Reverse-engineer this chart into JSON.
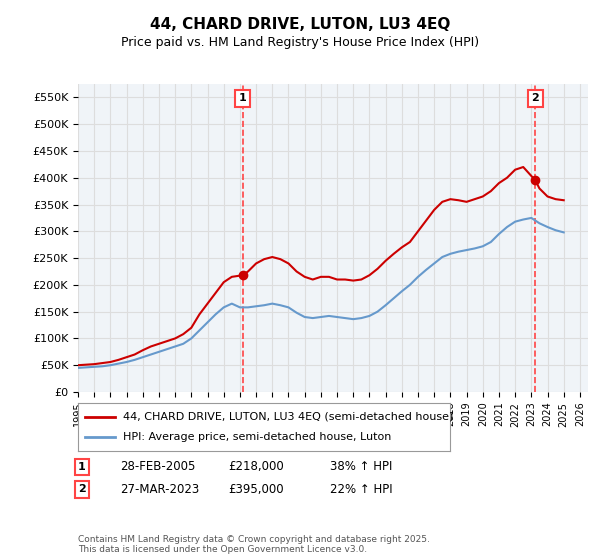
{
  "title": "44, CHARD DRIVE, LUTON, LU3 4EQ",
  "subtitle": "Price paid vs. HM Land Registry's House Price Index (HPI)",
  "footer": "Contains HM Land Registry data © Crown copyright and database right 2025.\nThis data is licensed under the Open Government Licence v3.0.",
  "legend_line1": "44, CHARD DRIVE, LUTON, LU3 4EQ (semi-detached house)",
  "legend_line2": "HPI: Average price, semi-detached house, Luton",
  "annotation1_label": "1",
  "annotation1_date": "28-FEB-2005",
  "annotation1_price": "£218,000",
  "annotation1_hpi": "38% ↑ HPI",
  "annotation2_label": "2",
  "annotation2_date": "27-MAR-2023",
  "annotation2_price": "£395,000",
  "annotation2_hpi": "22% ↑ HPI",
  "red_color": "#cc0000",
  "blue_color": "#6699cc",
  "background_color": "#ffffff",
  "grid_color": "#dddddd",
  "dashed_line_color": "#ff4444",
  "ylim": [
    0,
    575000
  ],
  "yticks": [
    0,
    50000,
    100000,
    150000,
    200000,
    250000,
    300000,
    350000,
    400000,
    450000,
    500000,
    550000
  ],
  "xlim_start": 1995.0,
  "xlim_end": 2026.5,
  "marker1_x": 2005.17,
  "marker1_y": 218000,
  "marker2_x": 2023.25,
  "marker2_y": 395000,
  "vline1_x": 2005.17,
  "vline2_x": 2023.25,
  "red_series_x": [
    1995.0,
    1995.5,
    1996.0,
    1996.5,
    1997.0,
    1997.5,
    1998.0,
    1998.5,
    1999.0,
    1999.5,
    2000.0,
    2000.5,
    2001.0,
    2001.5,
    2002.0,
    2002.5,
    2003.0,
    2003.5,
    2004.0,
    2004.5,
    2005.17,
    2005.5,
    2006.0,
    2006.5,
    2007.0,
    2007.5,
    2008.0,
    2008.5,
    2009.0,
    2009.5,
    2010.0,
    2010.5,
    2011.0,
    2011.5,
    2012.0,
    2012.5,
    2013.0,
    2013.5,
    2014.0,
    2014.5,
    2015.0,
    2015.5,
    2016.0,
    2016.5,
    2017.0,
    2017.5,
    2018.0,
    2018.5,
    2019.0,
    2019.5,
    2020.0,
    2020.5,
    2021.0,
    2021.5,
    2022.0,
    2022.5,
    2023.25,
    2023.5,
    2024.0,
    2024.5,
    2025.0
  ],
  "red_series_y": [
    50000,
    51000,
    52000,
    54000,
    56000,
    60000,
    65000,
    70000,
    78000,
    85000,
    90000,
    95000,
    100000,
    108000,
    120000,
    145000,
    165000,
    185000,
    205000,
    215000,
    218000,
    225000,
    240000,
    248000,
    252000,
    248000,
    240000,
    225000,
    215000,
    210000,
    215000,
    215000,
    210000,
    210000,
    208000,
    210000,
    218000,
    230000,
    245000,
    258000,
    270000,
    280000,
    300000,
    320000,
    340000,
    355000,
    360000,
    358000,
    355000,
    360000,
    365000,
    375000,
    390000,
    400000,
    415000,
    420000,
    395000,
    380000,
    365000,
    360000,
    358000
  ],
  "blue_series_x": [
    1995.0,
    1995.5,
    1996.0,
    1996.5,
    1997.0,
    1997.5,
    1998.0,
    1998.5,
    1999.0,
    1999.5,
    2000.0,
    2000.5,
    2001.0,
    2001.5,
    2002.0,
    2002.5,
    2003.0,
    2003.5,
    2004.0,
    2004.5,
    2005.0,
    2005.5,
    2006.0,
    2006.5,
    2007.0,
    2007.5,
    2008.0,
    2008.5,
    2009.0,
    2009.5,
    2010.0,
    2010.5,
    2011.0,
    2011.5,
    2012.0,
    2012.5,
    2013.0,
    2013.5,
    2014.0,
    2014.5,
    2015.0,
    2015.5,
    2016.0,
    2016.5,
    2017.0,
    2017.5,
    2018.0,
    2018.5,
    2019.0,
    2019.5,
    2020.0,
    2020.5,
    2021.0,
    2021.5,
    2022.0,
    2022.5,
    2023.0,
    2023.5,
    2024.0,
    2024.5,
    2025.0
  ],
  "blue_series_y": [
    45000,
    46000,
    47000,
    48000,
    50000,
    53000,
    56000,
    60000,
    65000,
    70000,
    75000,
    80000,
    85000,
    90000,
    100000,
    115000,
    130000,
    145000,
    158000,
    165000,
    158000,
    158000,
    160000,
    162000,
    165000,
    162000,
    158000,
    148000,
    140000,
    138000,
    140000,
    142000,
    140000,
    138000,
    136000,
    138000,
    142000,
    150000,
    162000,
    175000,
    188000,
    200000,
    215000,
    228000,
    240000,
    252000,
    258000,
    262000,
    265000,
    268000,
    272000,
    280000,
    295000,
    308000,
    318000,
    322000,
    325000,
    315000,
    308000,
    302000,
    298000
  ]
}
